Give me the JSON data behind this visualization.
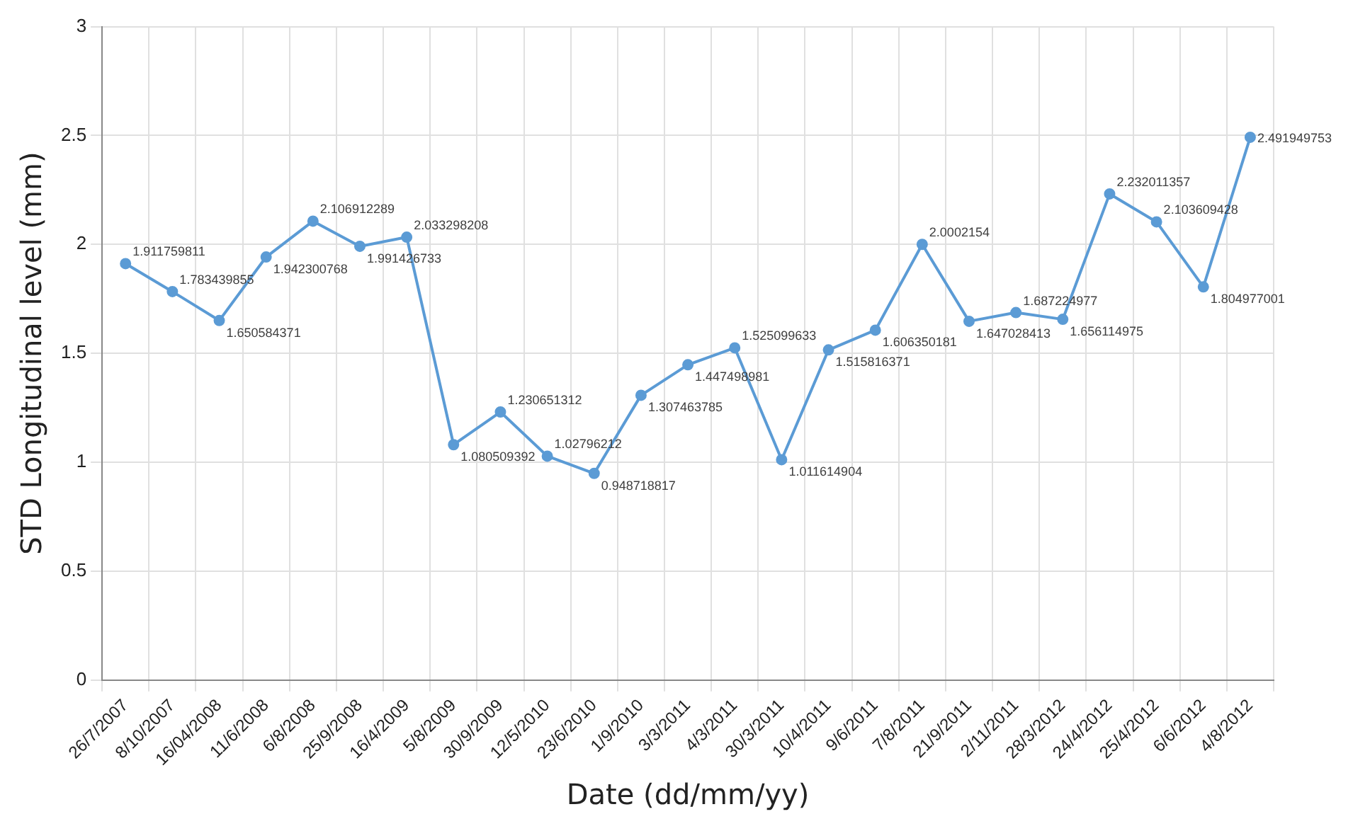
{
  "chart_data": {
    "type": "line",
    "xlabel": "Date (dd/mm/yy)",
    "ylabel": "STD Longitudinal level (mm)",
    "categories": [
      "26/7/2007",
      "8/10/2007",
      "16/04/2008",
      "11/6/2008",
      "6/8/2008",
      "25/9/2008",
      "16/4/2009",
      "5/8/2009",
      "30/9/2009",
      "12/5/2010",
      "23/6/2010",
      "1/9/2010",
      "3/3/2011",
      "4/3/2011",
      "30/3/2011",
      "10/4/2011",
      "9/6/2011",
      "7/8/2011",
      "21/9/2011",
      "2/11/2011",
      "28/3/2012",
      "24/4/2012",
      "25/4/2012",
      "6/6/2012",
      "4/8/2012"
    ],
    "series": [
      {
        "color": "#5b9bd5",
        "values": [
          1.911759811,
          1.783439855,
          1.650584371,
          1.942300768,
          2.106912289,
          1.991426733,
          2.033298208,
          1.080509392,
          1.230651312,
          1.02796212,
          0.948718817,
          1.307463785,
          1.447498981,
          1.525099633,
          1.011614904,
          1.515816371,
          1.606350181,
          2.0002154,
          1.647028413,
          1.687224977,
          1.656114975,
          2.232011357,
          2.103609428,
          1.804977001,
          2.491949753
        ]
      }
    ],
    "ylim": [
      0,
      3
    ],
    "yticks": [
      0,
      0.5,
      1,
      1.5,
      2,
      2.5,
      3
    ],
    "grid": true,
    "marker": "circle",
    "line_style": "solid",
    "data_labels": true,
    "legend": false
  }
}
